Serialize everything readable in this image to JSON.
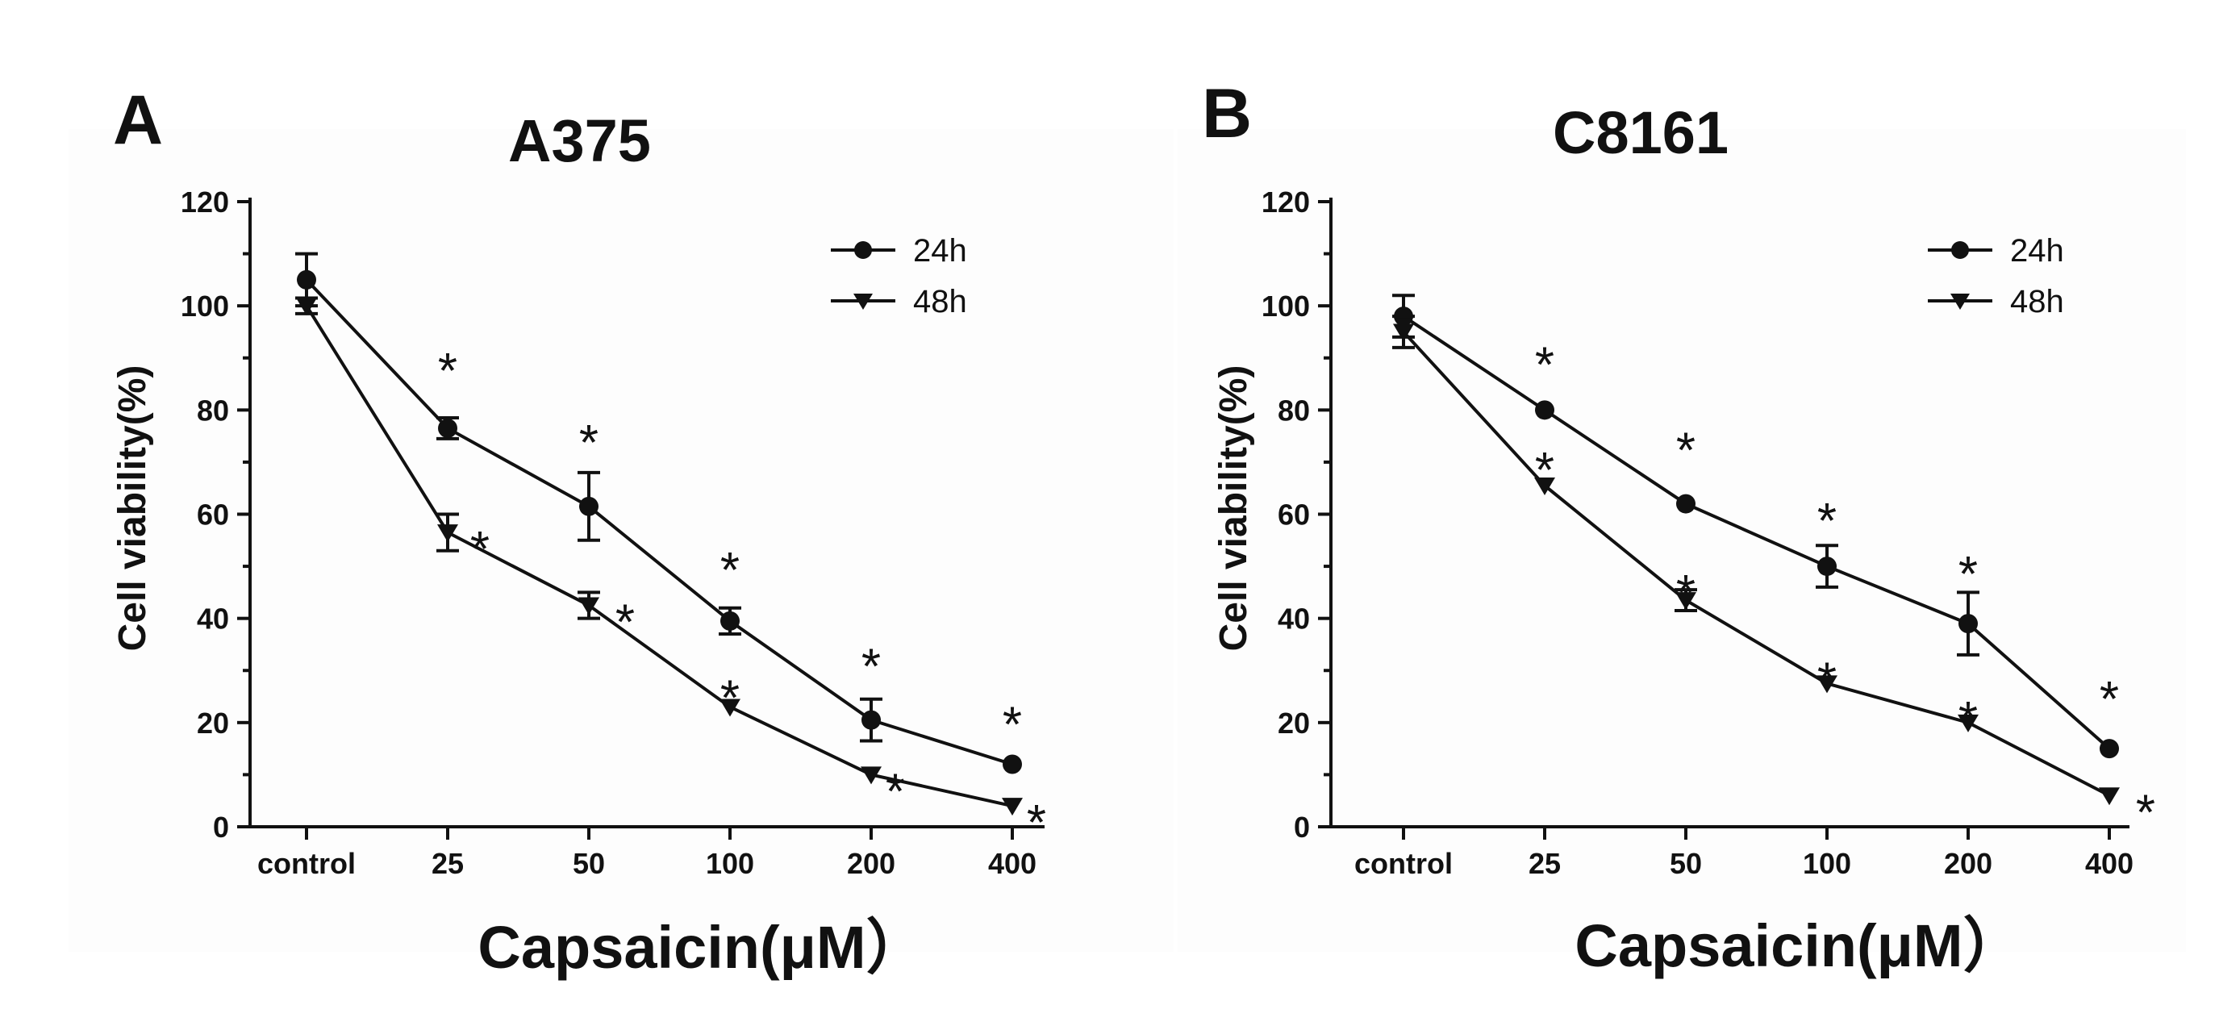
{
  "figure": {
    "panels": [
      {
        "letter": "A",
        "title": "A375"
      },
      {
        "letter": "B",
        "title": "C8161"
      }
    ],
    "ylabel": "Cell viability(%)",
    "xlabel": "Capsaicin(μM）",
    "legend": [
      "24h",
      "48h"
    ]
  },
  "chart_data": [
    {
      "type": "line",
      "title": "A375",
      "panel_label": "A",
      "xlabel": "Capsaicin(μM）",
      "ylabel": "Cell viability(%)",
      "categories": [
        "control",
        "25",
        "50",
        "100",
        "200",
        "400"
      ],
      "ylim": [
        0,
        120
      ],
      "yticks": [
        0,
        20,
        40,
        60,
        80,
        100,
        120
      ],
      "legend_position": "top-right",
      "grid": false,
      "series": [
        {
          "name": "24h",
          "marker": "circle",
          "values": [
            105,
            76.5,
            61.5,
            39.5,
            20.5,
            12
          ],
          "errors": [
            5,
            2,
            6.5,
            2.5,
            4,
            0
          ],
          "significance": [
            "",
            "*",
            "*",
            "*",
            "*",
            "*"
          ]
        },
        {
          "name": "48h",
          "marker": "triangle-down",
          "values": [
            100,
            56.5,
            42.5,
            23,
            10,
            4
          ],
          "errors": [
            1.5,
            3.5,
            2.5,
            0,
            0,
            0
          ],
          "significance": [
            "",
            "*",
            "*",
            "*",
            "*",
            "*"
          ]
        }
      ]
    },
    {
      "type": "line",
      "title": "C8161",
      "panel_label": "B",
      "xlabel": "Capsaicin(μM）",
      "ylabel": "Cell viability(%)",
      "categories": [
        "control",
        "25",
        "50",
        "100",
        "200",
        "400"
      ],
      "ylim": [
        0,
        120
      ],
      "yticks": [
        0,
        20,
        40,
        60,
        80,
        100,
        120
      ],
      "legend_position": "top-right",
      "grid": false,
      "series": [
        {
          "name": "24h",
          "marker": "circle",
          "values": [
            98,
            80,
            62,
            50,
            39,
            15
          ],
          "errors": [
            4,
            0,
            0,
            4,
            6,
            0
          ],
          "significance": [
            "",
            "*",
            "*",
            "*",
            "*",
            "*"
          ]
        },
        {
          "name": "48h",
          "marker": "triangle-down",
          "values": [
            95,
            65.5,
            43.5,
            27.5,
            20,
            6
          ],
          "errors": [
            3,
            0,
            2,
            0,
            0,
            0
          ],
          "significance": [
            "",
            "*",
            "*",
            "*",
            "*",
            "*"
          ]
        }
      ]
    }
  ]
}
